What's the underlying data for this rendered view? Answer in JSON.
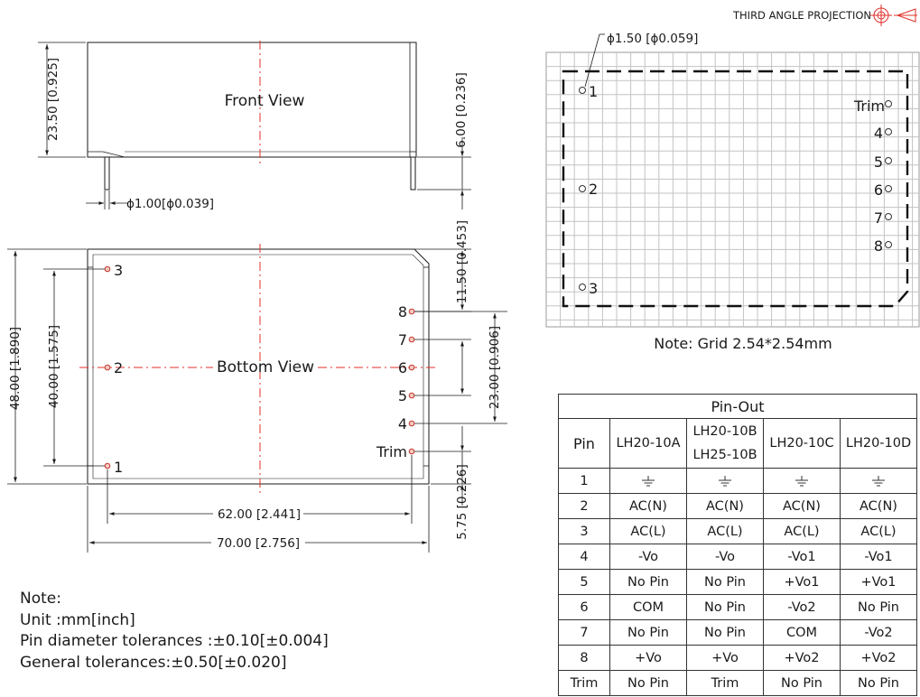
{
  "projection": {
    "label": "THIRD ANGLE PROJECTION"
  },
  "front_view": {
    "title": "Front View",
    "dim_height": "23.50 [0.925]",
    "dim_pin_length": "6.00 [0.236]",
    "dim_pin_diameter": "ϕ1.00[ϕ0.039]"
  },
  "bottom_view": {
    "title": "Bottom View",
    "dim_total_height": "48.00 [1.890]",
    "dim_pin_span_vertical": "40.00 [1.575]",
    "dim_top_offset": "11.50 [0.453]",
    "dim_right_pin_span": "23.00 [0.906]",
    "dim_bottom_offset": "5.75 [0.226]",
    "dim_pin_span_horizontal": "62.00 [2.441]",
    "dim_total_width": "70.00 [2.756]",
    "left_pins": [
      "3",
      "2",
      "1"
    ],
    "right_pins": [
      "8",
      "7",
      "6",
      "5",
      "4",
      "Trim"
    ]
  },
  "layout_view": {
    "hole_label": "ϕ1.50 [ϕ0.059]",
    "left_pins": [
      "1",
      "2",
      "3"
    ],
    "right_pins": [
      "Trim",
      "4",
      "5",
      "6",
      "7",
      "8"
    ],
    "grid_note": "Note: Grid 2.54*2.54mm"
  },
  "notes": {
    "lines": [
      "Note:",
      "Unit :mm[inch]",
      "Pin diameter tolerances :±0.10[±0.004]",
      "General tolerances:±0.50[±0.020]"
    ]
  },
  "pinout": {
    "title": "Pin-Out",
    "pin_header": "Pin",
    "models": [
      "LH20-10A",
      "LH20-10B",
      "LH25-10B",
      "LH20-10C",
      "LH20-10D"
    ],
    "rows": [
      {
        "pin": "1",
        "a": "",
        "b": "",
        "c": "",
        "d": ""
      },
      {
        "pin": "2",
        "a": "AC(N)",
        "b": "AC(N)",
        "c": "AC(N)",
        "d": "AC(N)"
      },
      {
        "pin": "3",
        "a": "AC(L)",
        "b": "AC(L)",
        "c": "AC(L)",
        "d": "AC(L)"
      },
      {
        "pin": "4",
        "a": "-Vo",
        "b": "-Vo",
        "c": "-Vo1",
        "d": "-Vo1"
      },
      {
        "pin": "5",
        "a": "No Pin",
        "b": "No Pin",
        "c": "+Vo1",
        "d": "+Vo1"
      },
      {
        "pin": "6",
        "a": "COM",
        "b": "No Pin",
        "c": "-Vo2",
        "d": "No Pin"
      },
      {
        "pin": "7",
        "a": "No Pin",
        "b": "No Pin",
        "c": "COM",
        "d": "-Vo2"
      },
      {
        "pin": "8",
        "a": "+Vo",
        "b": "+Vo",
        "c": "+Vo2",
        "d": "+Vo2"
      },
      {
        "pin": "Trim",
        "a": "No Pin",
        "b": "Trim",
        "c": "No Pin",
        "d": "No Pin"
      }
    ],
    "row1_symbol": "ground-icon"
  }
}
